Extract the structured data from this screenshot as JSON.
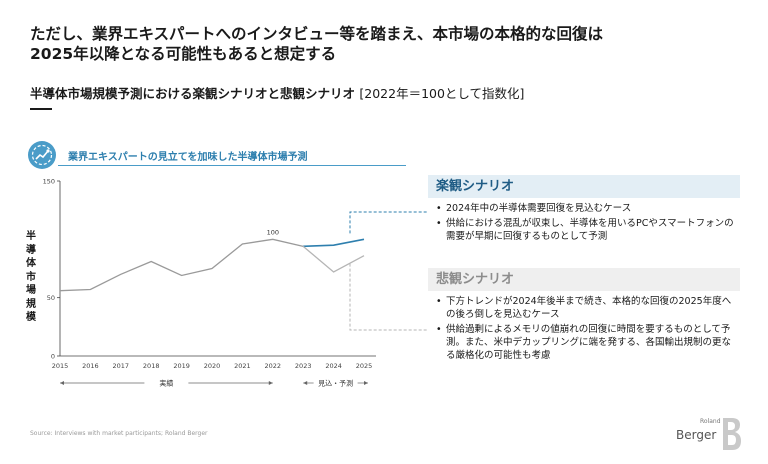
{
  "headline": {
    "line1": "ただし、業界エキスパートへのインタビュー等を踏まえ、本市場の本格的な回復は",
    "line2": "2025年以降となる可能性もあると想定する"
  },
  "subtitle": {
    "main": "半導体市場規模予測における楽観シナリオと悲観シナリオ",
    "bracket": "[2022年＝100として指数化]"
  },
  "chart_title": "業界エキスパートの見立てを加味した半導体市場予測",
  "chart_data": {
    "type": "line",
    "title": "業界エキスパートの見立てを加味した半導体市場予測",
    "ylabel": "半導体市場規模",
    "xlabel": "",
    "ylim": [
      0,
      150
    ],
    "yticks": [
      "0",
      "50",
      "150"
    ],
    "x": [
      "2015",
      "2016",
      "2017",
      "2018",
      "2019",
      "2020",
      "2021",
      "2022",
      "2023",
      "2024",
      "2025"
    ],
    "series": [
      {
        "name": "実績",
        "x": [
          "2015",
          "2016",
          "2017",
          "2018",
          "2019",
          "2020",
          "2021",
          "2022",
          "2023"
        ],
        "values": [
          56,
          57,
          70,
          81,
          69,
          75,
          96,
          100,
          94
        ],
        "color": "#9a9a9a"
      },
      {
        "name": "楽観シナリオ",
        "x": [
          "2023",
          "2024",
          "2025"
        ],
        "values": [
          94,
          95,
          100
        ],
        "color": "#2e7fae"
      },
      {
        "name": "悲観シナリオ",
        "x": [
          "2023",
          "2024",
          "2025"
        ],
        "values": [
          94,
          72,
          86
        ],
        "color": "#b5b5b5"
      }
    ],
    "annotations": [
      {
        "x": "2022",
        "text": "100"
      }
    ],
    "periods": [
      {
        "label": "実績",
        "from": "2015",
        "to": "2022"
      },
      {
        "label": "見込・予測",
        "from": "2023",
        "to": "2025"
      }
    ]
  },
  "optimistic": {
    "title": "楽観シナリオ",
    "bullets": [
      "2024年中の半導体需要回復を見込むケース",
      "供給における混乱が収束し、半導体を用いるPCやスマートフォンの需要が早期に回復するものとして予測"
    ]
  },
  "pessimistic": {
    "title": "悲観シナリオ",
    "bullets": [
      "下方トレンドが2024年後半まで続き、本格的な回復の2025年度への後ろ倒しを見込むケース",
      "供給過剰によるメモリの値崩れの回復に時間を要するものとして予測。また、米中デカップリングに端を発する、各国輸出規制の更なる厳格化の可能性も考慮"
    ]
  },
  "source": "Source: Interviews with market participants; Roland Berger",
  "logo": {
    "small": "Roland",
    "main": "Berger"
  },
  "colors": {
    "accent": "#2e7fae",
    "pessimistic": "#b5b5b5",
    "actual": "#9a9a9a"
  }
}
